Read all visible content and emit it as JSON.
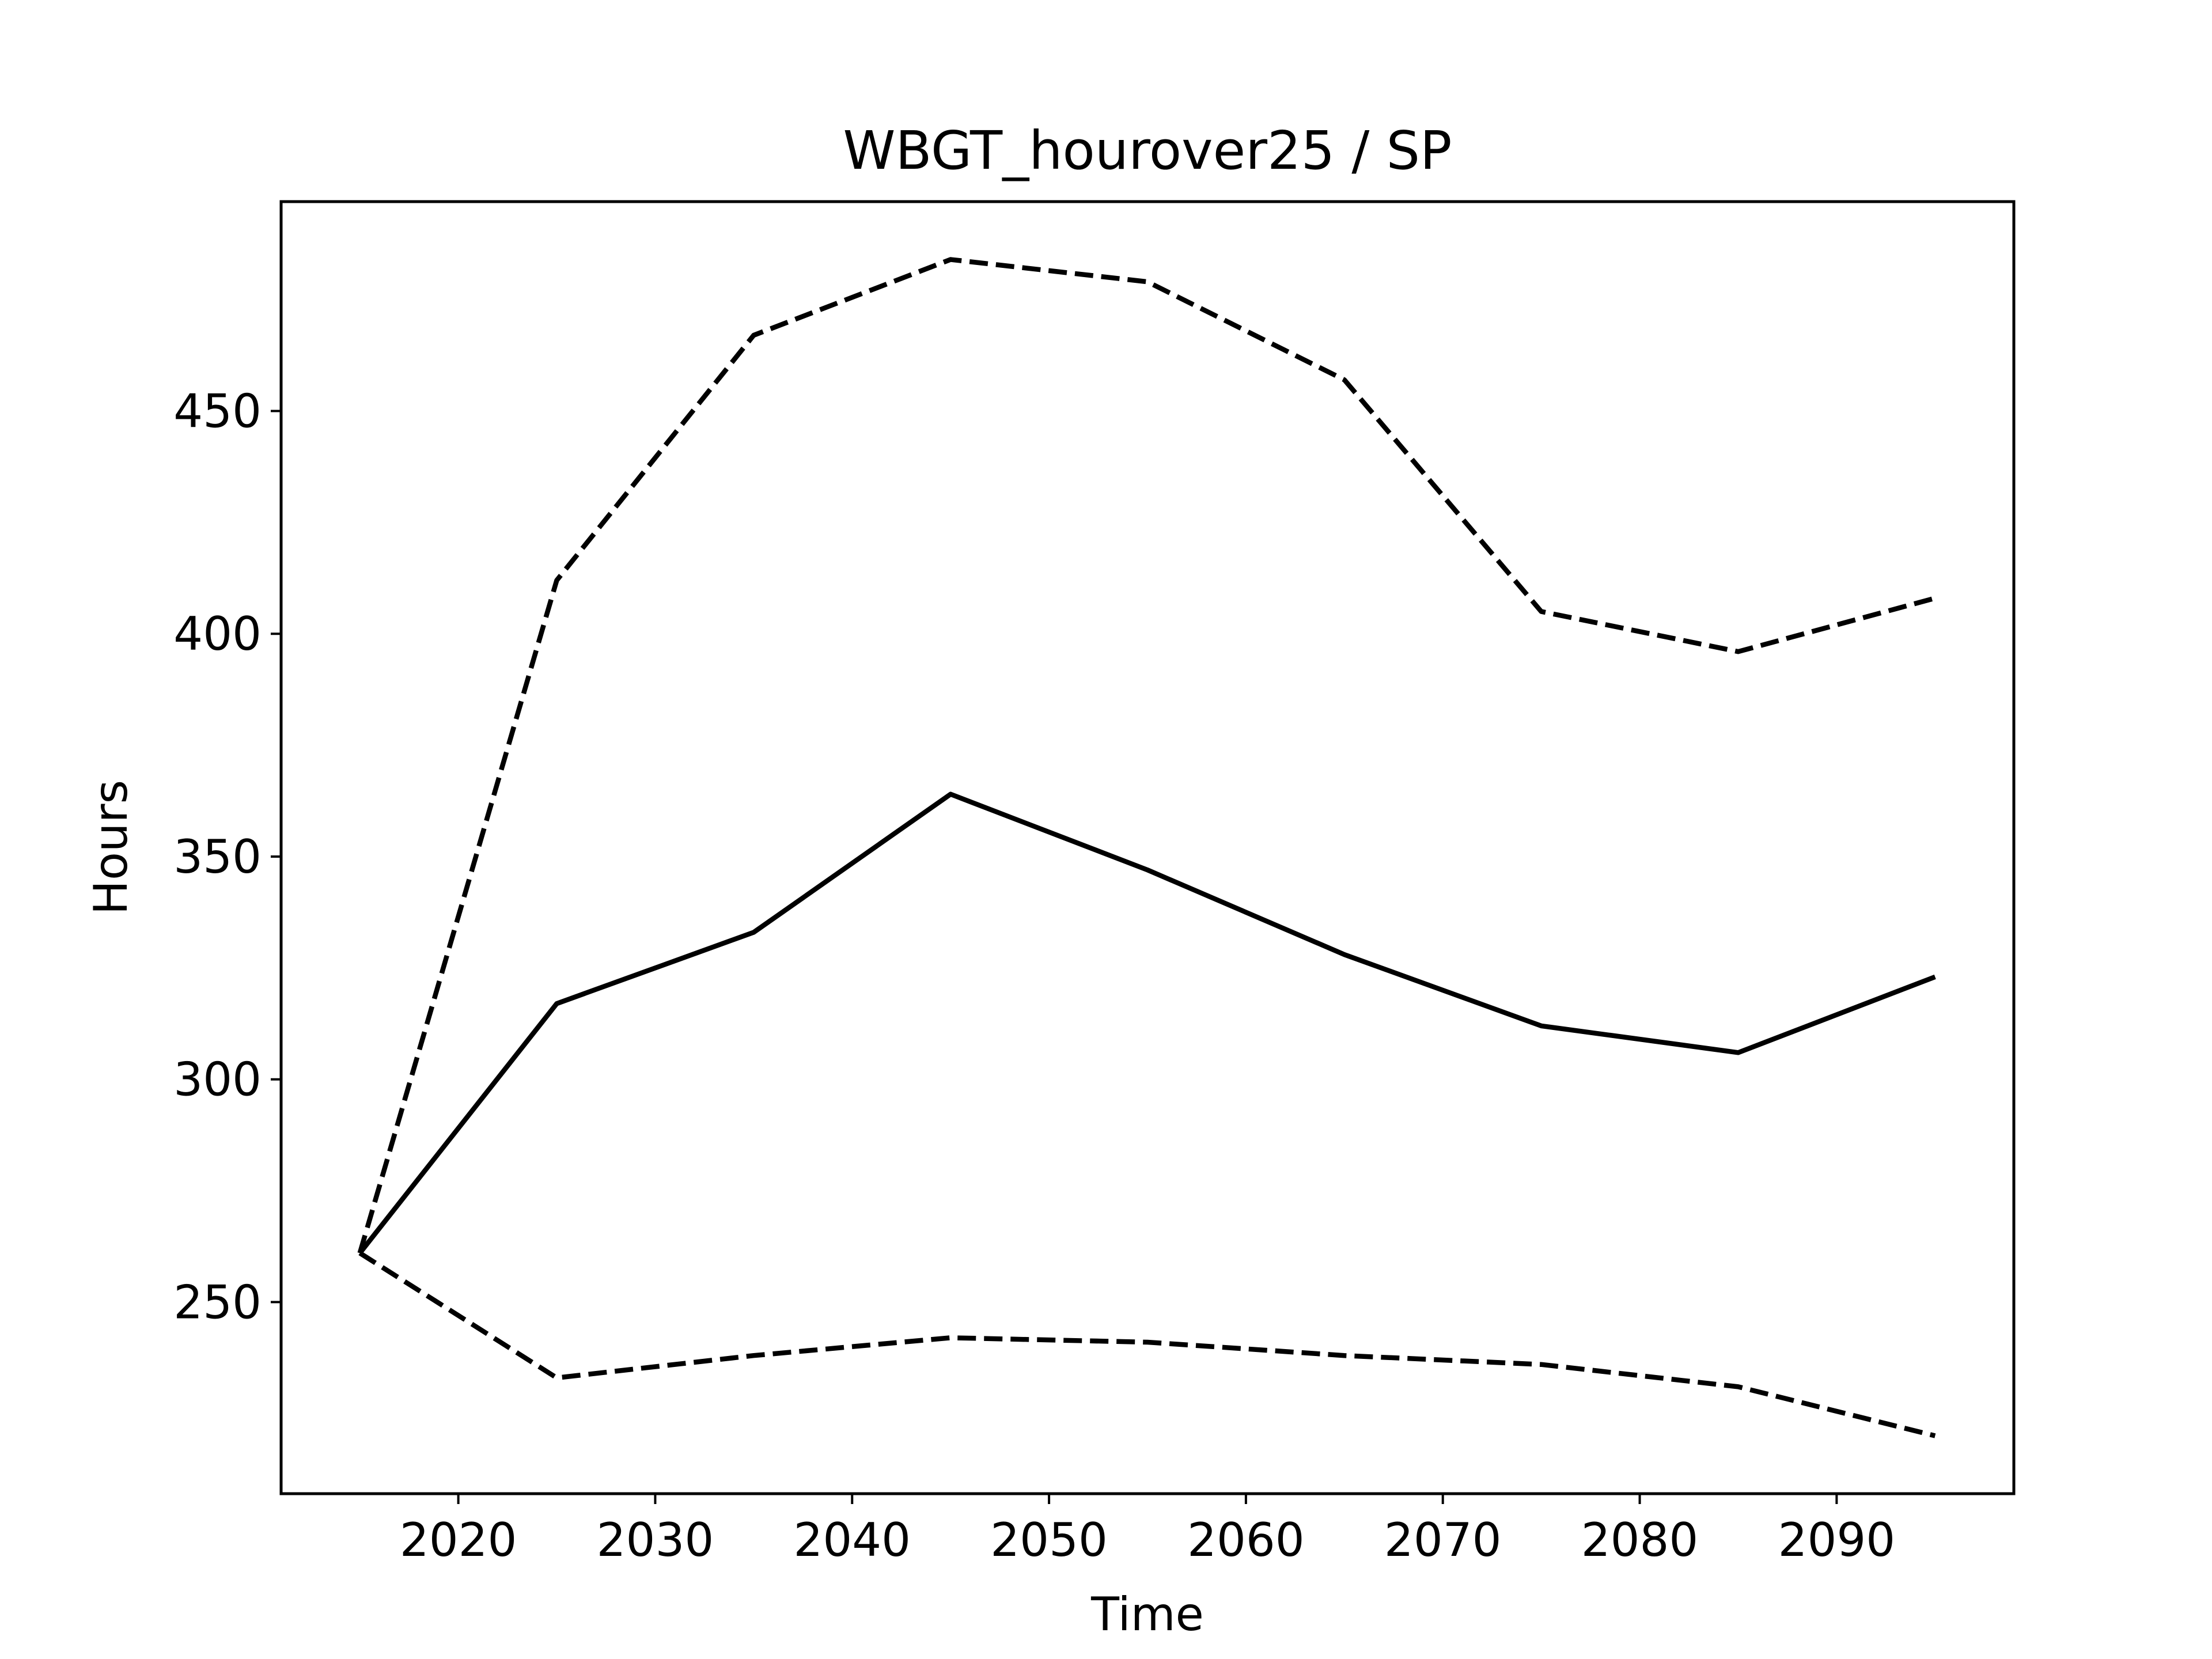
{
  "chart_data": {
    "type": "line",
    "title": "WBGT_hourover25 / SP",
    "xlabel": "Time",
    "ylabel": "Hours",
    "xlim": [
      2011,
      2099
    ],
    "ylim": [
      207,
      497
    ],
    "x_ticks": [
      2020,
      2030,
      2040,
      2050,
      2060,
      2070,
      2080,
      2090
    ],
    "y_ticks": [
      250,
      300,
      350,
      400,
      450
    ],
    "grid": false,
    "legend": "none",
    "x": [
      2015,
      2025,
      2035,
      2045,
      2055,
      2065,
      2075,
      2085,
      2095
    ],
    "series": [
      {
        "style": "dashed",
        "color": "#000000",
        "values": [
          261,
          412,
          467,
          484,
          479,
          457,
          405,
          396,
          408
        ]
      },
      {
        "style": "solid",
        "color": "#000000",
        "values": [
          261,
          317,
          333,
          364,
          347,
          328,
          312,
          306,
          323
        ]
      },
      {
        "style": "dashed",
        "color": "#000000",
        "values": [
          261,
          233,
          238,
          242,
          241,
          238,
          236,
          231,
          220
        ]
      }
    ]
  }
}
